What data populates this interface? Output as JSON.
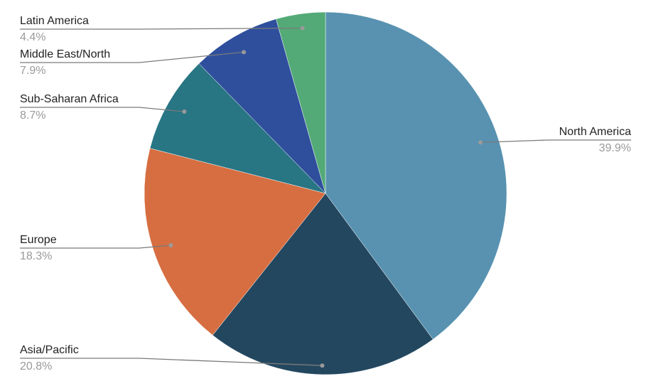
{
  "chart_data": {
    "type": "pie",
    "title": "",
    "slices": [
      {
        "label": "North America",
        "value": 39.9,
        "value_label": "39.9%",
        "color": "#5892b0"
      },
      {
        "label": "Asia/Pacific",
        "value": 20.8,
        "value_label": "20.8%",
        "color": "#23475f"
      },
      {
        "label": "Europe",
        "value": 18.3,
        "value_label": "18.3%",
        "color": "#d66e41"
      },
      {
        "label": "Sub-Saharan Africa",
        "value": 8.7,
        "value_label": "8.7%",
        "color": "#287584"
      },
      {
        "label": "Middle East/North",
        "value": 7.9,
        "value_label": "7.9%",
        "color": "#2f4f9d"
      },
      {
        "label": "Latin America",
        "value": 4.4,
        "value_label": "4.4%",
        "color": "#53aa77"
      }
    ],
    "start_angle_deg": 0,
    "direction": "clockwise",
    "legend": "none",
    "label_style": "outside-with-leader-lines"
  }
}
